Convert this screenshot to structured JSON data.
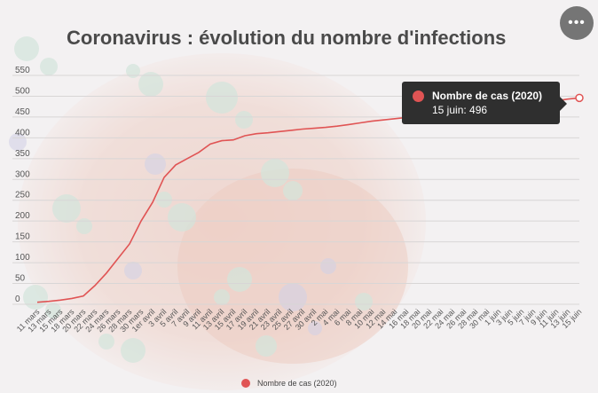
{
  "chart": {
    "title": "Coronavirus : évolution du nombre d'infections",
    "tooltip": {
      "series": "Nombre de cas (2020)",
      "text": "15 juin: 496"
    },
    "legend_label": "Nombre de cas (2020)",
    "menu_icon": "more-horizontal-icon",
    "menu_glyph": "•••"
  },
  "chart_data": {
    "type": "line",
    "title": "Coronavirus : évolution du nombre d'infections",
    "xlabel": "",
    "ylabel": "",
    "ylim": [
      0,
      550
    ],
    "yticks": [
      0,
      50,
      100,
      150,
      200,
      250,
      300,
      350,
      400,
      450,
      500,
      550
    ],
    "xticks": [
      "11 mars",
      "13 mars",
      "15 mars",
      "18 mars",
      "20 mars",
      "22 mars",
      "24 mars",
      "26 mars",
      "28 mars",
      "30 mars",
      "1er avril",
      "3 avril",
      "5 avril",
      "7 avril",
      "9 avril",
      "11 avril",
      "13 avril",
      "15 avril",
      "17 avril",
      "19 avril",
      "21 avril",
      "23 avril",
      "25 avril",
      "27 avril",
      "30 avril",
      "2 mai",
      "4 mai",
      "6 mai",
      "8 mai",
      "10 mai",
      "12 mai",
      "14 mai",
      "16 mai",
      "18 mai",
      "20 mai",
      "22 mai",
      "24 mai",
      "26 mai",
      "28 mai",
      "30 mai",
      "1 juin",
      "3 juin",
      "5 juin",
      "7 juin",
      "9 juin",
      "11 juin",
      "13 juin",
      "15 juin"
    ],
    "grid": true,
    "legend": "bottom",
    "series": [
      {
        "name": "Nombre de cas (2020)",
        "color": "#e05454",
        "values": [
          5,
          7,
          10,
          14,
          20,
          45,
          75,
          110,
          145,
          200,
          245,
          305,
          335,
          350,
          365,
          385,
          393,
          395,
          405,
          410,
          412,
          415,
          418,
          421,
          423,
          425,
          428,
          432,
          436,
          440,
          443,
          446,
          449,
          452,
          455,
          458,
          461,
          464,
          467,
          470,
          473,
          476,
          479,
          482,
          486,
          489,
          493,
          496
        ]
      }
    ]
  }
}
